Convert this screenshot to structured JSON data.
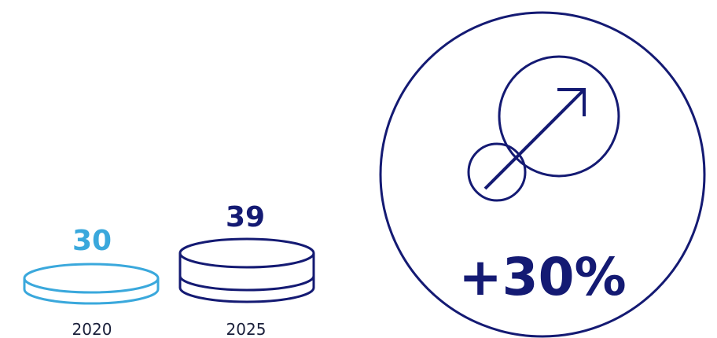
{
  "chart_data": {
    "type": "bar",
    "categories": [
      "2020",
      "2025"
    ],
    "values": [
      30,
      39
    ],
    "value_labels": [
      "30",
      "39"
    ],
    "change_label": "+30%",
    "colors": {
      "light": "#3aa8dc",
      "dark": "#141a73"
    }
  }
}
